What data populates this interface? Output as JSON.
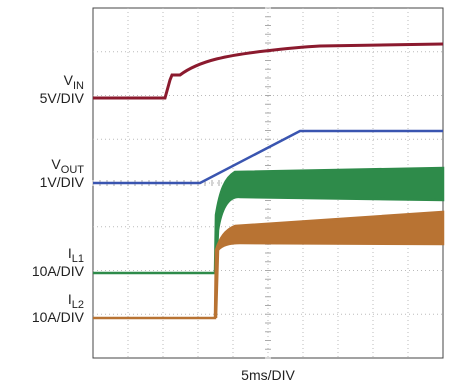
{
  "traces": [
    {
      "name": "V",
      "sub": "IN",
      "scale": "5V/DIV"
    },
    {
      "name": "V",
      "sub": "OUT",
      "scale": "1V/DIV"
    },
    {
      "name": "I",
      "sub": "L1",
      "scale": "10A/DIV"
    },
    {
      "name": "I",
      "sub": "L2",
      "scale": "10A/DIV"
    }
  ],
  "time_scale": "5ms/DIV"
}
